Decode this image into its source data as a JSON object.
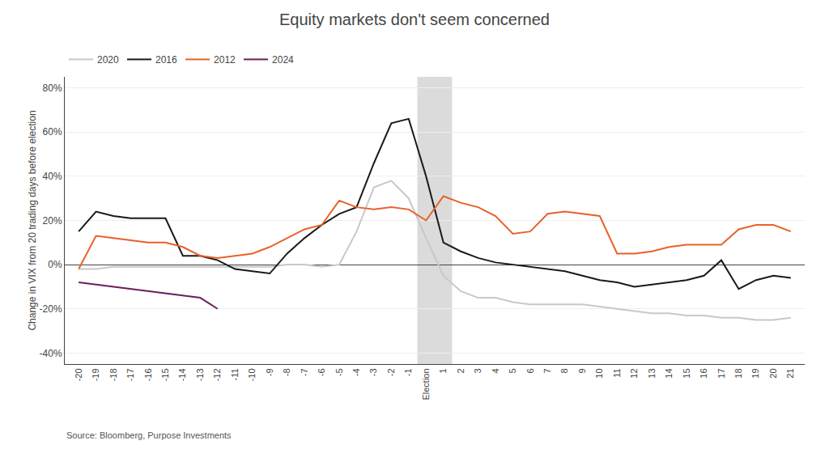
{
  "chart_data": {
    "type": "line",
    "title": "Equity markets don't seem concerned",
    "y_label": "Change in VIX from 20 trading days before election",
    "source": "Source: Bloomberg, Purpose Investments",
    "xlim": [
      -20.8,
      21.8
    ],
    "xticks": [
      -20,
      -19,
      -18,
      -17,
      -16,
      -15,
      -14,
      -13,
      -12,
      -11,
      -10,
      -9,
      -8,
      -7,
      -6,
      -5,
      -4,
      -3,
      -2,
      -1,
      {
        "value": 0,
        "label": "Election"
      },
      1,
      2,
      3,
      4,
      5,
      6,
      7,
      8,
      9,
      10,
      11,
      12,
      13,
      14,
      15,
      16,
      17,
      18,
      19,
      20,
      21
    ],
    "ylim": [
      -45,
      85
    ],
    "yticks": [
      {
        "value": -40,
        "label": "-40%"
      },
      {
        "value": -20,
        "label": "-20%"
      },
      {
        "value": 0,
        "label": "0%"
      },
      {
        "value": 20,
        "label": "20%"
      },
      {
        "value": 40,
        "label": "40%"
      },
      {
        "value": 60,
        "label": "60%"
      },
      {
        "value": 80,
        "label": "80%"
      }
    ],
    "grid": "y",
    "legend": "upper left",
    "shade": [
      -0.5,
      1.5
    ],
    "series": [
      {
        "name": "2020",
        "color": "#c8c8c8",
        "x": [
          -20,
          -19,
          -18,
          -17,
          -16,
          -15,
          -14,
          -13,
          -12,
          -11,
          -10,
          -9,
          -8,
          -7,
          -6,
          -5,
          -4,
          -3,
          -2,
          -1,
          0,
          1,
          2,
          3,
          4,
          5,
          6,
          7,
          8,
          9,
          10,
          11,
          12,
          13,
          14,
          15,
          16,
          17,
          18,
          19,
          20,
          21
        ],
        "values": [
          -2,
          -2,
          -1,
          -1,
          -1,
          -1,
          -1,
          -1,
          -1,
          -1,
          -1,
          -1,
          0,
          0,
          -1,
          0,
          15,
          35,
          38,
          30,
          12,
          -5,
          -12,
          -15,
          -15,
          -17,
          -18,
          -18,
          -18,
          -18,
          -19,
          -20,
          -21,
          -22,
          -22,
          -23,
          -23,
          -24,
          -24,
          -25,
          -25,
          -24
        ]
      },
      {
        "name": "2016",
        "color": "#1a1a1a",
        "x": [
          -20,
          -19,
          -18,
          -17,
          -16,
          -15,
          -14,
          -13,
          -12,
          -11,
          -10,
          -9,
          -8,
          -7,
          -6,
          -5,
          -4,
          -3,
          -2,
          -1,
          0,
          1,
          2,
          3,
          4,
          5,
          6,
          7,
          8,
          9,
          10,
          11,
          12,
          13,
          14,
          15,
          16,
          17,
          18,
          19,
          20,
          21
        ],
        "values": [
          15,
          24,
          22,
          21,
          21,
          21,
          4,
          4,
          2,
          -2,
          -3,
          -4,
          5,
          12,
          18,
          23,
          26,
          46,
          64,
          66,
          40,
          10,
          6,
          3,
          1,
          0,
          -1,
          -2,
          -3,
          -5,
          -7,
          -8,
          -10,
          -9,
          -8,
          -7,
          -5,
          2,
          -11,
          -7,
          -5,
          -6
        ]
      },
      {
        "name": "2012",
        "color": "#E8622A",
        "x": [
          -20,
          -19,
          -18,
          -17,
          -16,
          -15,
          -14,
          -13,
          -12,
          -11,
          -10,
          -9,
          -8,
          -7,
          -6,
          -5,
          -4,
          -3,
          -2,
          -1,
          0,
          1,
          2,
          3,
          4,
          5,
          6,
          7,
          8,
          9,
          10,
          11,
          12,
          13,
          14,
          15,
          16,
          17,
          18,
          19,
          20,
          21
        ],
        "values": [
          -2,
          13,
          12,
          11,
          10,
          10,
          8,
          4,
          3,
          4,
          5,
          8,
          12,
          16,
          18,
          29,
          26,
          25,
          26,
          25,
          20,
          31,
          28,
          26,
          22,
          14,
          15,
          23,
          24,
          23,
          22,
          5,
          5,
          6,
          8,
          9,
          9,
          9,
          16,
          18,
          18,
          15
        ]
      },
      {
        "name": "2024",
        "color": "#6B1F5E",
        "x": [
          -20,
          -19,
          -18,
          -17,
          -16,
          -15,
          -14,
          -13,
          -12
        ],
        "values": [
          -8,
          -9,
          -10,
          -11,
          -12,
          -13,
          -14,
          -15,
          -20
        ]
      }
    ]
  }
}
